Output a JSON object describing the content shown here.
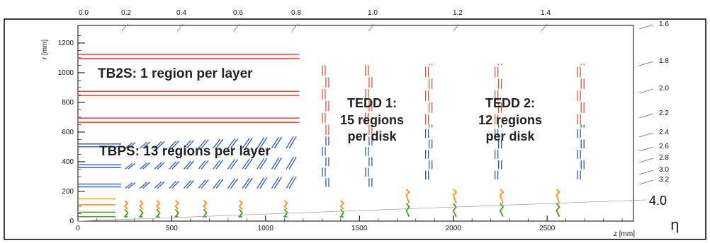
{
  "chart_data": {
    "type": "diagram",
    "x_axis": {
      "label": "z [mm]",
      "ticks": [
        0,
        500,
        1000,
        1500,
        2000,
        2500
      ],
      "range": [
        0,
        2960
      ]
    },
    "y_axis": {
      "label": "r [mm]",
      "ticks": [
        0,
        200,
        400,
        600,
        800,
        1000,
        1200
      ],
      "range": [
        0,
        1290
      ]
    },
    "eta_top": [
      "0.0",
      "0.2",
      "0.4",
      "0.6",
      "0.8",
      "1.0",
      "1.2",
      "1.4"
    ],
    "eta_right": [
      "1.6",
      "1.8",
      "2.0",
      "2.2",
      "2.4",
      "2.6",
      "2.8",
      "3.0",
      "3.2"
    ],
    "eta_big": "4.0",
    "eta_symbol": "η",
    "region_labels": {
      "tb2s": "TB2S: 1 region per layer",
      "tbps": "TBPS: 13 regions per layer",
      "tedd1_line1": "TEDD 1:",
      "tedd1_line2": "15 regions",
      "tedd1_line3": "per disk",
      "tedd2_line1": "TEDD 2:",
      "tedd2_line2": "12 regions",
      "tedd2_line3": "per disk"
    },
    "tb2s_layers_r_mm": [
      1110,
      860,
      680
    ],
    "tbps_layers_r_mm": [
      510,
      370,
      240
    ],
    "tedd1_disks_z_mm": [
      1310,
      1540
    ],
    "tedd2_disks_z_mm": [
      1860,
      2230,
      2670
    ],
    "pixel_disks_z_mm": [
      250,
      330,
      420,
      520,
      670,
      860,
      1100,
      1400,
      1750,
      2000,
      2250,
      2550
    ],
    "colors": {
      "tb2s": "#e8513a",
      "tbps": "#2f5aa8",
      "pixel_outer": "#f39c1f",
      "pixel_inner": "#5a9e2f",
      "frame": "#000000"
    }
  }
}
